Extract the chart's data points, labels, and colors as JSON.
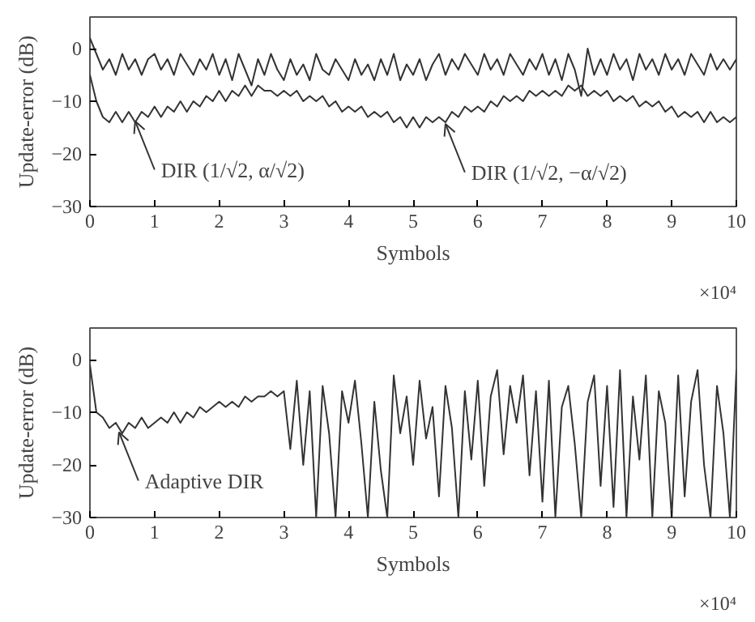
{
  "chart_data": [
    {
      "type": "line",
      "xlabel": "Symbols",
      "ylabel": "Update-error (dB)",
      "xlim": [
        0,
        10
      ],
      "ylim": [
        -30,
        6
      ],
      "xticks": [
        0,
        1,
        2,
        3,
        4,
        5,
        6,
        7,
        8,
        9,
        10
      ],
      "yticks": [
        -30,
        -20,
        -10,
        0
      ],
      "grid": false,
      "marker": "none",
      "line_style": "solid",
      "x": [
        0,
        0.1,
        0.2,
        0.3,
        0.4,
        0.5,
        0.6,
        0.7,
        0.8,
        0.9,
        1,
        1.1,
        1.2,
        1.3,
        1.4,
        1.5,
        1.6,
        1.7,
        1.8,
        1.9,
        2,
        2.1,
        2.2,
        2.3,
        2.4,
        2.5,
        2.6,
        2.7,
        2.8,
        2.9,
        3,
        3.1,
        3.2,
        3.3,
        3.4,
        3.5,
        3.6,
        3.7,
        3.8,
        3.9,
        4,
        4.1,
        4.2,
        4.3,
        4.4,
        4.5,
        4.6,
        4.7,
        4.8,
        4.9,
        5,
        5.1,
        5.2,
        5.3,
        5.4,
        5.5,
        5.6,
        5.7,
        5.8,
        5.9,
        6,
        6.1,
        6.2,
        6.3,
        6.4,
        6.5,
        6.6,
        6.7,
        6.8,
        6.9,
        7,
        7.1,
        7.2,
        7.3,
        7.4,
        7.5,
        7.6,
        7.7,
        7.8,
        7.9,
        8,
        8.1,
        8.2,
        8.3,
        8.4,
        8.5,
        8.6,
        8.7,
        8.8,
        8.9,
        9,
        9.1,
        9.2,
        9.3,
        9.4,
        9.5,
        9.6,
        9.7,
        9.8,
        9.9,
        10
      ],
      "series": [
        {
          "color": "#333333",
          "values": [
            2,
            -1,
            -4,
            -2,
            -5,
            -1,
            -4,
            -2,
            -5,
            -2,
            -1,
            -4,
            -2,
            -5,
            -1,
            -3,
            -5,
            -2,
            -4,
            -1,
            -5,
            -2,
            -6,
            -1,
            -4,
            -7,
            -2,
            -5,
            -1,
            -4,
            -6,
            -2,
            -5,
            -3,
            -6,
            -1,
            -4,
            -5,
            -2,
            -4,
            -6,
            -2,
            -5,
            -3,
            -6,
            -2,
            -5,
            -1,
            -6,
            -3,
            -5,
            -2,
            -6,
            -3,
            -1,
            -5,
            -2,
            -4,
            -1,
            -3,
            -5,
            -1,
            -4,
            -2,
            -5,
            -1,
            -3,
            -5,
            -2,
            -4,
            -1,
            -5,
            -2,
            -6,
            -1,
            -4,
            -9,
            0,
            -5,
            -2,
            -5,
            -1,
            -4,
            -2,
            -6,
            -1,
            -4,
            -2,
            -5,
            -1,
            -4,
            -2,
            -5,
            -1,
            -3,
            -5,
            -1,
            -4,
            -2,
            -4,
            -2
          ]
        },
        {
          "color": "#333333",
          "values": [
            -5,
            -10,
            -13,
            -14,
            -12,
            -14,
            -12,
            -14,
            -12,
            -13,
            -11,
            -13,
            -11,
            -12,
            -10,
            -12,
            -10,
            -11,
            -9,
            -10,
            -8,
            -10,
            -8,
            -9,
            -7,
            -9,
            -7,
            -8,
            -8,
            -9,
            -8,
            -9,
            -8,
            -10,
            -9,
            -10,
            -9,
            -11,
            -10,
            -12,
            -11,
            -12,
            -11,
            -13,
            -12,
            -13,
            -12,
            -14,
            -13,
            -15,
            -13,
            -15,
            -13,
            -14,
            -13,
            -14,
            -12,
            -13,
            -11,
            -12,
            -11,
            -12,
            -10,
            -11,
            -9,
            -10,
            -9,
            -10,
            -8,
            -9,
            -8,
            -9,
            -8,
            -9,
            -7,
            -8,
            -7,
            -9,
            -8,
            -9,
            -8,
            -10,
            -9,
            -10,
            -9,
            -11,
            -10,
            -11,
            -10,
            -12,
            -11,
            -13,
            -12,
            -13,
            -12,
            -14,
            -12,
            -14,
            -13,
            -14,
            -13
          ]
        }
      ],
      "annotations": [
        {
          "text": "DIR (1/√2, α/√2)",
          "x": 0.7,
          "y": -13
        },
        {
          "text": "DIR (1/√2, −α/√2)",
          "x": 5.5,
          "y": -13.5
        },
        "×10⁴"
      ]
    },
    {
      "type": "line",
      "xlabel": "Symbols",
      "ylabel": "Update-error (dB)",
      "xlim": [
        0,
        10
      ],
      "ylim": [
        -30,
        6
      ],
      "xticks": [
        0,
        1,
        2,
        3,
        4,
        5,
        6,
        7,
        8,
        9,
        10
      ],
      "yticks": [
        -30,
        -20,
        -10,
        0
      ],
      "grid": false,
      "marker": "none",
      "line_style": "solid",
      "x": [
        0,
        0.1,
        0.2,
        0.3,
        0.4,
        0.5,
        0.6,
        0.7,
        0.8,
        0.9,
        1,
        1.1,
        1.2,
        1.3,
        1.4,
        1.5,
        1.6,
        1.7,
        1.8,
        1.9,
        2,
        2.1,
        2.2,
        2.3,
        2.4,
        2.5,
        2.6,
        2.7,
        2.8,
        2.9,
        3,
        3.1,
        3.2,
        3.3,
        3.4,
        3.5,
        3.6,
        3.7,
        3.8,
        3.9,
        4,
        4.1,
        4.2,
        4.3,
        4.4,
        4.5,
        4.6,
        4.7,
        4.8,
        4.9,
        5,
        5.1,
        5.2,
        5.3,
        5.4,
        5.5,
        5.6,
        5.7,
        5.8,
        5.9,
        6,
        6.1,
        6.2,
        6.3,
        6.4,
        6.5,
        6.6,
        6.7,
        6.8,
        6.9,
        7,
        7.1,
        7.2,
        7.3,
        7.4,
        7.5,
        7.6,
        7.7,
        7.8,
        7.9,
        8,
        8.1,
        8.2,
        8.3,
        8.4,
        8.5,
        8.6,
        8.7,
        8.8,
        8.9,
        9,
        9.1,
        9.2,
        9.3,
        9.4,
        9.5,
        9.6,
        9.7,
        9.8,
        9.9,
        10
      ],
      "series": [
        {
          "color": "#333333",
          "values": [
            -1,
            -10,
            -11,
            -13,
            -12,
            -14,
            -12,
            -13,
            -11,
            -13,
            -12,
            -11,
            -12,
            -10,
            -12,
            -10,
            -11,
            -9,
            -10,
            -9,
            -8,
            -9,
            -8,
            -9,
            -7,
            -8,
            -7,
            -7,
            -6,
            -7,
            -6,
            -17,
            -4,
            -20,
            -6,
            -30,
            -5,
            -14,
            -30,
            -6,
            -12,
            -4,
            -16,
            -30,
            -8,
            -21,
            -30,
            -3,
            -14,
            -7,
            -20,
            -4,
            -15,
            -9,
            -26,
            -5,
            -13,
            -30,
            -6,
            -19,
            -4,
            -24,
            -7,
            -2,
            -18,
            -5,
            -12,
            -3,
            -22,
            -6,
            -27,
            -4,
            -30,
            -9,
            -5,
            -16,
            -30,
            -8,
            -3,
            -24,
            -5,
            -28,
            -2,
            -30,
            -7,
            -19,
            -3,
            -30,
            -6,
            -12,
            -30,
            -3,
            -26,
            -8,
            -2,
            -20,
            -30,
            -5,
            -14,
            -30,
            -2
          ]
        }
      ],
      "annotations": [
        {
          "text": "Adaptive DIR",
          "x": 0.45,
          "y": -13
        },
        "×10⁴"
      ]
    }
  ]
}
